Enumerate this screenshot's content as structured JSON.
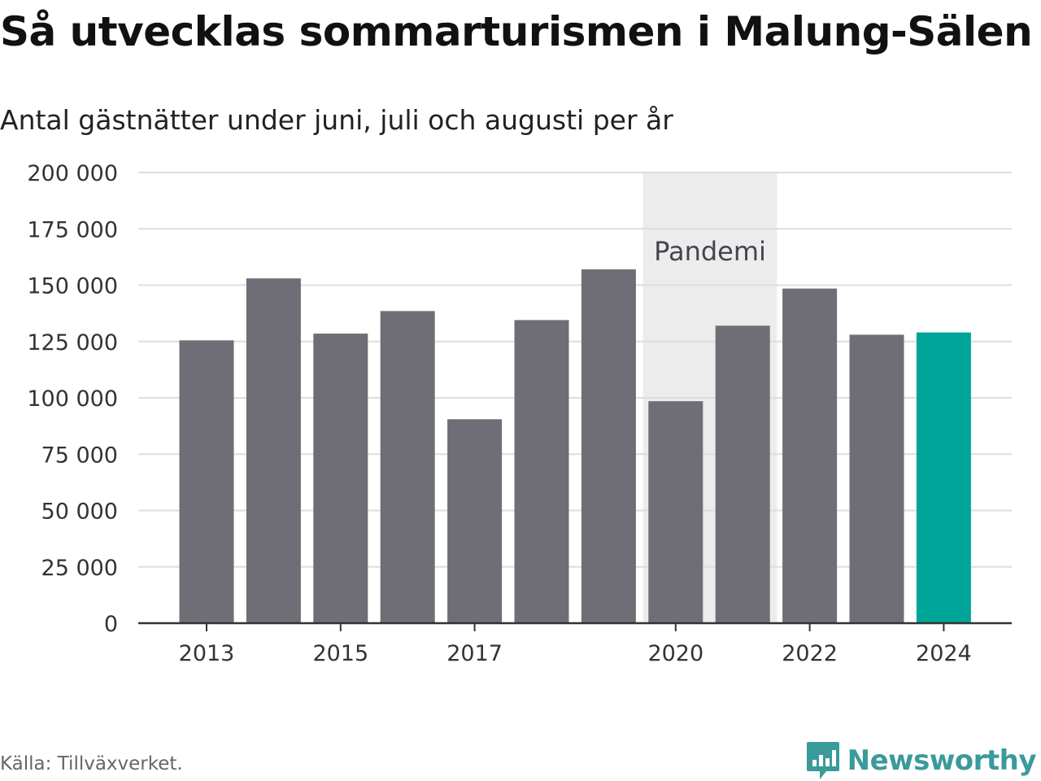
{
  "header": {
    "title": "Så utvecklas sommarturismen i Malung-Sälen",
    "subtitle": "Antal gästnätter under juni, juli och augusti per år"
  },
  "footer": {
    "source": "Källa: Tillväxverket.",
    "brand": "Newsworthy"
  },
  "chart_data": {
    "type": "bar",
    "categories": [
      "2013",
      "2014",
      "2015",
      "2016",
      "2017",
      "2018",
      "2019",
      "2020",
      "2021",
      "2022",
      "2023",
      "2024"
    ],
    "values": [
      125500,
      153000,
      128500,
      138500,
      90500,
      134500,
      157000,
      98500,
      132000,
      148500,
      128000,
      129000
    ],
    "highlight_index": 11,
    "x_tick_labels": [
      "2013",
      "2015",
      "2017",
      "2020",
      "2022",
      "2024"
    ],
    "y_ticks": [
      0,
      25000,
      50000,
      75000,
      100000,
      125000,
      150000,
      175000,
      200000
    ],
    "y_tick_labels": [
      "0",
      "25 000",
      "50 000",
      "75 000",
      "100 000",
      "125 000",
      "150 000",
      "175 000",
      "200 000"
    ],
    "ylim": [
      0,
      200000
    ],
    "grid": true,
    "shaded_region": {
      "from": "2020",
      "to": "2021",
      "label": "Pandemi"
    },
    "colors": {
      "bar": "#6f6e76",
      "highlight": "#00a59a",
      "shade": "#ececec",
      "grid": "#dddddd",
      "axis": "#333333"
    }
  }
}
